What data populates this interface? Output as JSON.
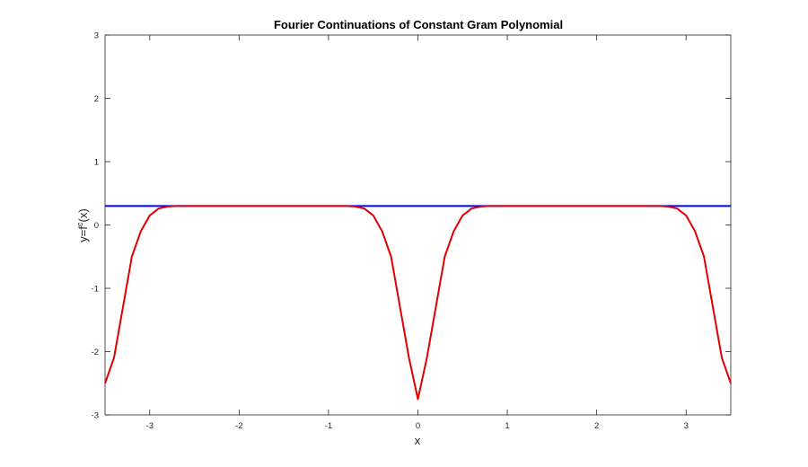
{
  "chart_data": {
    "type": "line",
    "title": "Fourier Continuations of Constant Gram Polynomial",
    "xlabel": "x",
    "ylabel_main": "y=f",
    "ylabel_sup": "c",
    "ylabel_tail": "(x)",
    "xlim": [
      -3.5,
      3.5
    ],
    "ylim": [
      -3,
      3
    ],
    "xticks": [
      -3,
      -2,
      -1,
      0,
      1,
      2,
      3
    ],
    "yticks": [
      -3,
      -2,
      -1,
      0,
      1,
      2,
      3
    ],
    "grid": false,
    "series": [
      {
        "color": "#0000ff",
        "x": [
          -3.5,
          3.5
        ],
        "y": [
          0.3,
          0.3
        ]
      },
      {
        "color": "#e00000",
        "x": [
          -3.5,
          -3.4,
          -3.3,
          -3.2,
          -3.1,
          -3.0,
          -2.9,
          -2.8,
          -2.7,
          -2.6,
          -2.4,
          -2.0,
          -1.5,
          -1.0,
          -0.8,
          -0.7,
          -0.6,
          -0.5,
          -0.4,
          -0.3,
          -0.2,
          -0.1,
          0.0,
          0.1,
          0.2,
          0.3,
          0.4,
          0.5,
          0.6,
          0.7,
          0.8,
          1.0,
          1.5,
          2.0,
          2.4,
          2.6,
          2.7,
          2.8,
          2.9,
          3.0,
          3.1,
          3.2,
          3.3,
          3.4,
          3.5
        ],
        "y": [
          -2.5,
          -2.1,
          -1.3,
          -0.5,
          -0.1,
          0.15,
          0.26,
          0.29,
          0.3,
          0.3,
          0.3,
          0.3,
          0.3,
          0.3,
          0.3,
          0.29,
          0.26,
          0.15,
          -0.1,
          -0.5,
          -1.3,
          -2.1,
          -2.75,
          -2.1,
          -1.3,
          -0.5,
          -0.1,
          0.15,
          0.26,
          0.29,
          0.3,
          0.3,
          0.3,
          0.3,
          0.3,
          0.3,
          0.3,
          0.29,
          0.26,
          0.15,
          -0.1,
          -0.5,
          -1.3,
          -2.1,
          -2.5
        ]
      }
    ]
  }
}
